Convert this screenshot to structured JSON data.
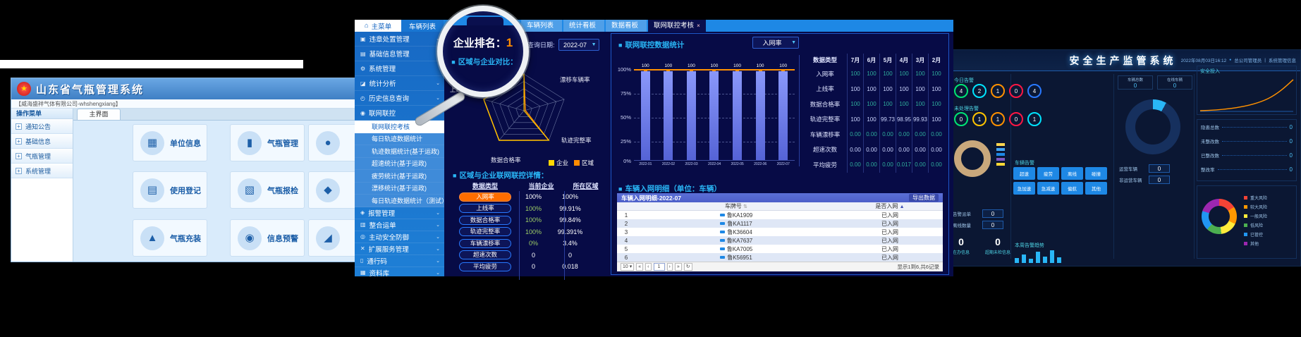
{
  "left_app": {
    "title": "山东省气瓶管理系统",
    "company": "【威海盛祥气体有限公司-whshengxiang】",
    "menu_header": "操作菜单",
    "menu_items": [
      "通知公告",
      "基础信息",
      "气瓶管理",
      "系统管理"
    ],
    "tab": "主界面",
    "cards": [
      {
        "glyph": "▦",
        "label": "单位信息"
      },
      {
        "glyph": "▮",
        "label": "气瓶管理"
      },
      {
        "glyph": "●",
        "label": ""
      },
      {
        "glyph": "▤",
        "label": "使用登记"
      },
      {
        "glyph": "▧",
        "label": "气瓶报检"
      },
      {
        "glyph": "◆",
        "label": ""
      },
      {
        "glyph": "▲",
        "label": "气瓶充装"
      },
      {
        "glyph": "◉",
        "label": "信息预警"
      },
      {
        "glyph": "◢",
        "label": ""
      }
    ]
  },
  "center_app": {
    "home_tab": "主菜单",
    "home_icon": "⌂",
    "vehicle_tab": "车辆列表",
    "collapse": "❮",
    "tabs": [
      {
        "label": "车辆列表"
      },
      {
        "label": "统计看板"
      },
      {
        "label": "数据看板"
      },
      {
        "label": "联网联控考核",
        "close": "×"
      }
    ],
    "sidebar": {
      "groups_top": [
        {
          "icon": "▣",
          "label": "违章处置管理",
          "chev": "⌄"
        },
        {
          "icon": "▤",
          "label": "基础信息管理",
          "chev": "⌄"
        },
        {
          "icon": "⚙",
          "label": "系统管理",
          "chev": ""
        },
        {
          "icon": "◪",
          "label": "统计分析",
          "chev": "⌄"
        },
        {
          "icon": "◴",
          "label": "历史信息查询",
          "chev": "⌄"
        },
        {
          "icon": "◉",
          "label": "联网联控",
          "chev": ""
        }
      ],
      "submenu": [
        "联网联控考核",
        "每日轨迹数据统计",
        "轨迹数据统计(基于运政)",
        "超速统计(基于运政)",
        "疲劳统计(基于运政)",
        "漂移统计(基于运政)",
        "每日轨迹数据统计（测试）"
      ],
      "groups_bottom": [
        {
          "icon": "◈",
          "label": "报警管理",
          "chev": "⌄"
        },
        {
          "icon": "▥",
          "label": "整合运单",
          "chev": "⌄"
        },
        {
          "icon": "◎",
          "label": "主动安全防御",
          "chev": "⌄"
        },
        {
          "icon": "✕",
          "label": "扩展服务管理",
          "chev": "⌄"
        },
        {
          "icon": "▯",
          "label": "通行码",
          "chev": "⌄"
        },
        {
          "icon": "▦",
          "label": "资料库",
          "chev": "⌄"
        }
      ]
    },
    "rank_label": "企业排名：",
    "rank_value": "1",
    "query_label": "查询日期:",
    "query_value": "2022-07",
    "caret": "▼",
    "compare_title": "区域与企业对比：",
    "radar_axes": [
      "入网率",
      "漂移车辆率",
      "轨迹完整率",
      "数据合格率",
      "上线率"
    ],
    "detail_title": "区域与企业联网联控详情：",
    "detail_table": {
      "headers": [
        "数据类型",
        "当前企业",
        "所在区域"
      ],
      "rows": [
        [
          "入网率",
          "100%",
          "100%"
        ],
        [
          "上线率",
          "100%",
          "99.91%"
        ],
        [
          "数据合格率",
          "100%",
          "99.84%"
        ],
        [
          "轨迹完整率",
          "100%",
          "99.391%"
        ],
        [
          "车辆漂移率",
          "0%",
          "3.4%"
        ],
        [
          "超速次数",
          "0",
          "0"
        ],
        [
          "平均疲劳",
          "0",
          "0.018"
        ]
      ]
    },
    "stats_title": "联网联控数据统计",
    "stats_metric": "入网率",
    "monthly_table": {
      "headers": [
        "数据类型",
        "7月",
        "6月",
        "5月",
        "4月",
        "3月",
        "2月"
      ],
      "rows": [
        [
          "入网率",
          "100",
          "100",
          "100",
          "100",
          "100",
          "100"
        ],
        [
          "上线率",
          "100",
          "100",
          "100",
          "100",
          "100",
          "100"
        ],
        [
          "数据合格率",
          "100",
          "100",
          "100",
          "100",
          "100",
          "100"
        ],
        [
          "轨迹完整率",
          "100",
          "100",
          "99.73",
          "98.95",
          "99.93",
          "100"
        ],
        [
          "车辆漂移率",
          "0.00",
          "0.00",
          "0.00",
          "0.00",
          "0.00",
          "0.00"
        ],
        [
          "超速次数",
          "0.00",
          "0.00",
          "0.00",
          "0.00",
          "0.00",
          "0.00"
        ],
        [
          "平均疲劳",
          "0.00",
          "0.00",
          "0.00",
          "0.017",
          "0.00",
          "0.00"
        ]
      ]
    },
    "vehicle_section_title": "车辆入网明细（单位：车辆）",
    "vehicle_table": {
      "title": "车辆入网明细-2022-07",
      "export": "导出数据",
      "col_plate": "车牌号",
      "col_status": "是否入网",
      "sort_plate": "⇅",
      "sort_status": "▲",
      "rows": [
        [
          "1",
          "鲁KA1909",
          "已入网"
        ],
        [
          "2",
          "鲁KA1117",
          "已入网"
        ],
        [
          "3",
          "鲁K36604",
          "已入网"
        ],
        [
          "4",
          "鲁KA7637",
          "已入网"
        ],
        [
          "5",
          "鲁KA7005",
          "已入网"
        ],
        [
          "6",
          "鲁K56951",
          "已入网"
        ]
      ],
      "page_size": "10 ▾",
      "pg_first": "«",
      "pg_prev": "‹",
      "page": "1",
      "pg_next": "›",
      "pg_last": "»",
      "pg_refresh": "↻",
      "summary": "显示1到6,共6记录"
    }
  },
  "right_app": {
    "title": "安全生产监管系统",
    "datetime": "2022年08月03日16:12",
    "dot": "●",
    "user": "总公司管理员",
    "sep": "|",
    "nav": "系统管理信息",
    "today_label": "今日告警",
    "today_rings": [
      {
        "v": "4",
        "c": "#00e676"
      },
      {
        "v": "2",
        "c": "#00e5ff"
      },
      {
        "v": "1",
        "c": "#ff9100"
      },
      {
        "v": "0",
        "c": "#ff1744"
      },
      {
        "v": "4",
        "c": "#2979ff"
      }
    ],
    "pending_label": "未处理告警",
    "pending_rings": [
      {
        "v": "0",
        "c": "#00e676"
      },
      {
        "v": "1",
        "c": "#ffc400"
      },
      {
        "v": "1",
        "c": "#ff9100"
      },
      {
        "v": "0",
        "c": "#ff1744"
      },
      {
        "v": "1",
        "c": "#00e5ff"
      }
    ],
    "donut_legend": [
      "#ffd54f",
      "#42a5f5",
      "#1e88e5",
      "#7e57c2",
      "#fdd835"
    ],
    "stat_rows": [
      {
        "label": "告警派单",
        "value": "0"
      },
      {
        "label": "离线数量",
        "value": "0"
      }
    ],
    "big_stats": [
      {
        "value": "0",
        "label": "在办信息"
      },
      {
        "value": "0",
        "label": "超期未检信息"
      }
    ],
    "vehicle_alarm_label": "车辆告警",
    "alarm_buttons": [
      "超速",
      "疲劳",
      "离线",
      "碰撞",
      "急加速",
      "急减速",
      "偏航",
      "其他"
    ],
    "week_trend_label": "本周告警趋势",
    "tiles": [
      {
        "label": "车辆总数",
        "value": "0"
      },
      {
        "label": "在线车辆",
        "value": "0"
      }
    ],
    "mid_rows": [
      {
        "label": "运营车辆",
        "value": "0"
      },
      {
        "label": "非运营车辆",
        "value": "0"
      }
    ],
    "panel1_title": "安全投入",
    "panel2_rows": [
      {
        "label": "隐患总数",
        "value": "0"
      },
      {
        "label": "未整改数",
        "value": "0"
      },
      {
        "label": "已整改数",
        "value": "0"
      },
      {
        "label": "整改率",
        "value": "0"
      }
    ],
    "risk_legend": [
      {
        "label": "重大风险",
        "color": "#f44336"
      },
      {
        "label": "较大风险",
        "color": "#ff9800"
      },
      {
        "label": "一般风险",
        "color": "#ffeb3b"
      },
      {
        "label": "低风险",
        "color": "#4caf50"
      },
      {
        "label": "已管控",
        "color": "#2196f3"
      },
      {
        "label": "其他",
        "color": "#9c27b0"
      }
    ]
  },
  "magnifier": {
    "rank_label": "企业排名：",
    "rank_value": "1",
    "compare_title": "区域与企业对比："
  },
  "chart_data": [
    {
      "type": "bar",
      "title": "联网联控数据统计",
      "metric": "入网率",
      "categories": [
        "2022-01",
        "2022-02",
        "2022-03",
        "2022-04",
        "2022-05",
        "2022-06",
        "2022-07"
      ],
      "values": [
        100,
        100,
        100,
        100,
        100,
        100,
        100
      ],
      "yticks": [
        "100%",
        "75%",
        "50%",
        "25%",
        "0%"
      ],
      "ylim": [
        0,
        100
      ],
      "line_overlay": 100,
      "legend_position": "none",
      "grid": "dashed-horizontal"
    },
    {
      "type": "radar",
      "title": "区域与企业对比",
      "axes": [
        "入网率",
        "漂移车辆率",
        "轨迹完整率",
        "数据合格率",
        "上线率"
      ],
      "series": [
        {
          "name": "企业",
          "color": "#ffd600",
          "values": [
            100,
            0,
            100,
            100,
            100
          ]
        },
        {
          "name": "区域",
          "color": "#ff8c00",
          "values": [
            100,
            3.4,
            99.391,
            99.84,
            99.91
          ]
        }
      ],
      "rings": 5,
      "legend_position": "bottom-right"
    },
    {
      "type": "line",
      "title": "安全投入",
      "values": [
        0,
        1,
        2,
        4,
        8,
        15,
        26,
        40
      ],
      "color": "#ff9100"
    },
    {
      "type": "bar",
      "title": "本周告警趋势",
      "values": [
        5,
        9,
        4,
        12,
        7,
        14,
        6
      ]
    }
  ]
}
